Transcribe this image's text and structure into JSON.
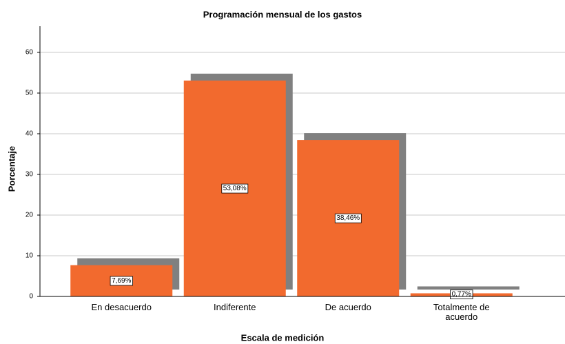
{
  "chart_data": {
    "type": "bar",
    "title": "Programación mensual de los gastos",
    "xlabel": "Escala de medición",
    "ylabel": "Porcentaje",
    "categories": [
      "En desacuerdo",
      "Indiferente",
      "De acuerdo",
      "Totalmente de acuerdo"
    ],
    "values": [
      7.69,
      53.08,
      38.46,
      0.77
    ],
    "value_labels": [
      "7,69%",
      "53,08%",
      "38,46%",
      "0,77%"
    ],
    "color": "#f26a2e",
    "shadow_color": "#808080",
    "ylim": [
      0,
      60
    ],
    "yticks": [
      0,
      10,
      20,
      30,
      40,
      50,
      60
    ],
    "grid": true
  }
}
